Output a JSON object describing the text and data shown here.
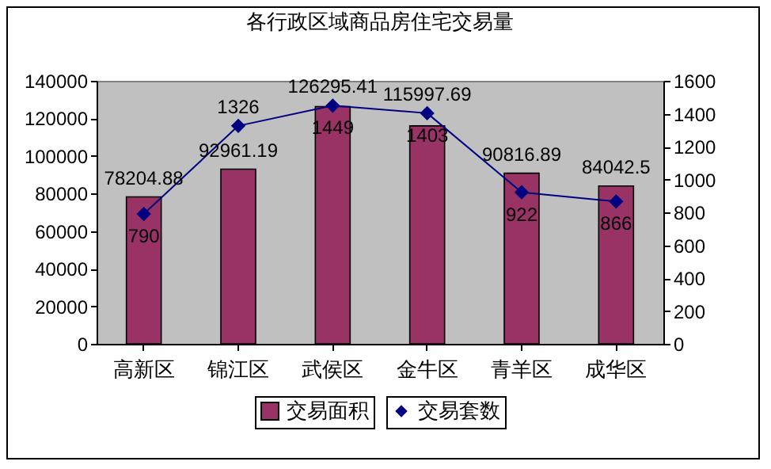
{
  "chart_data": {
    "type": "bar",
    "title": "各行政区域商品房住宅交易量",
    "categories": [
      "高新区",
      "锦江区",
      "武侯区",
      "金牛区",
      "青羊区",
      "成华区"
    ],
    "series": [
      {
        "name": "交易面积",
        "color": "#993366",
        "values": [
          78204.88,
          92961.19,
          126295.41,
          115997.69,
          90816.89,
          84042.5
        ]
      },
      {
        "name": "交易套数",
        "type": "line",
        "axis": "y2",
        "color": "#000080",
        "values": [
          790,
          1326,
          1449,
          1403,
          922,
          866
        ]
      }
    ],
    "ylim": [
      0,
      140000
    ],
    "yticks": [
      0,
      20000,
      40000,
      60000,
      80000,
      100000,
      120000,
      140000
    ],
    "y2lim": [
      0,
      1600
    ],
    "y2ticks": [
      0,
      200,
      400,
      600,
      800,
      1000,
      1200,
      1400,
      1600
    ],
    "data_labels": true,
    "legend": "bottom",
    "grid": false,
    "marker": "diamond",
    "line_style": "solid"
  }
}
